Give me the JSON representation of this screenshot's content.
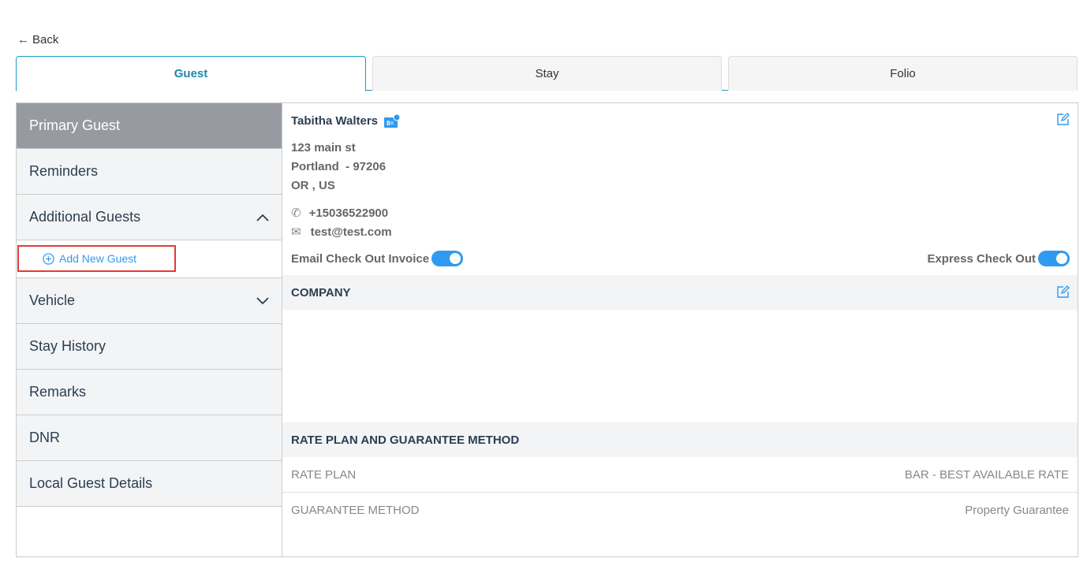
{
  "back_label": "Back",
  "tabs": [
    {
      "label": "Guest",
      "active": true
    },
    {
      "label": "Stay"
    },
    {
      "label": "Folio"
    }
  ],
  "sidebar": {
    "items": [
      "Primary Guest",
      "Reminders",
      "Additional Guests",
      "Vehicle",
      "Stay History",
      "Remarks",
      "DNR",
      "Local Guest Details"
    ],
    "add_new_guest": "Add New Guest"
  },
  "guest": {
    "name": "Tabitha Walters",
    "address1": "123 main st",
    "address2": "Portland  - 97206",
    "address3": "OR , US",
    "phone": "+15036522900",
    "email": "test@test.com",
    "email_checkout_label": "Email Check Out Invoice",
    "email_checkout_on": true,
    "express_checkout_label": "Express Check Out",
    "express_checkout_on": true
  },
  "company": {
    "title": "COMPANY"
  },
  "rate": {
    "title": "RATE PLAN AND GUARANTEE METHOD",
    "rows": [
      {
        "label": "RATE PLAN",
        "value": "BAR - BEST AVAILABLE RATE"
      },
      {
        "label": "GUARANTEE METHOD",
        "value": "Property Guarantee"
      }
    ]
  },
  "colors": {
    "accent": "#1a9bc7",
    "toggle": "#2f9af0",
    "active_sidebar": "#979ba1",
    "highlight": "#e53935"
  }
}
